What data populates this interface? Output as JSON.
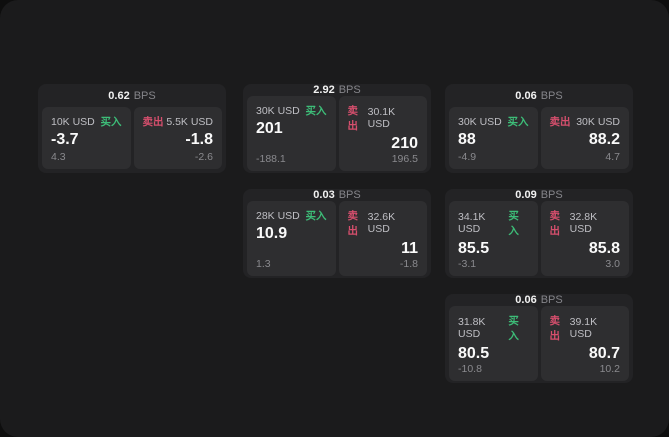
{
  "theme": {
    "page_bg": "#0e0e0e",
    "canvas_bg": "#1b1b1c",
    "card_bg": "#232325",
    "panel_bg": "#2e2e30",
    "text_primary": "#fafafa",
    "text_muted": "#8a8a8e",
    "text_amount": "#bfbfc4",
    "buy_color": "#3dbd78",
    "sell_color": "#d64f6d"
  },
  "labels": {
    "bps_suffix": "BPS",
    "buy": "买入",
    "sell": "卖出"
  },
  "cards": [
    {
      "bps": "0.62",
      "buy": {
        "amount": "10K USD",
        "value": "-3.7",
        "sub": "4.3"
      },
      "sell": {
        "amount": "5.5K USD",
        "value": "-1.8",
        "sub": "-2.6"
      }
    },
    {
      "bps": "2.92",
      "buy": {
        "amount": "30K USD",
        "value": "201",
        "sub": "-188.1"
      },
      "sell": {
        "amount": "30.1K USD",
        "value": "210",
        "sub": "196.5"
      }
    },
    {
      "bps": "0.06",
      "buy": {
        "amount": "30K USD",
        "value": "88",
        "sub": "-4.9"
      },
      "sell": {
        "amount": "30K USD",
        "value": "88.2",
        "sub": "4.7"
      }
    },
    {
      "bps": "0.03",
      "buy": {
        "amount": "28K USD",
        "value": "10.9",
        "sub": "1.3"
      },
      "sell": {
        "amount": "32.6K USD",
        "value": "11",
        "sub": "-1.8"
      }
    },
    {
      "bps": "0.09",
      "buy": {
        "amount": "34.1K USD",
        "value": "85.5",
        "sub": "-3.1"
      },
      "sell": {
        "amount": "32.8K USD",
        "value": "85.8",
        "sub": "3.0"
      }
    },
    {
      "bps": "0.06",
      "buy": {
        "amount": "31.8K USD",
        "value": "80.5",
        "sub": "-10.8"
      },
      "sell": {
        "amount": "39.1K USD",
        "value": "80.7",
        "sub": "10.2"
      }
    }
  ]
}
